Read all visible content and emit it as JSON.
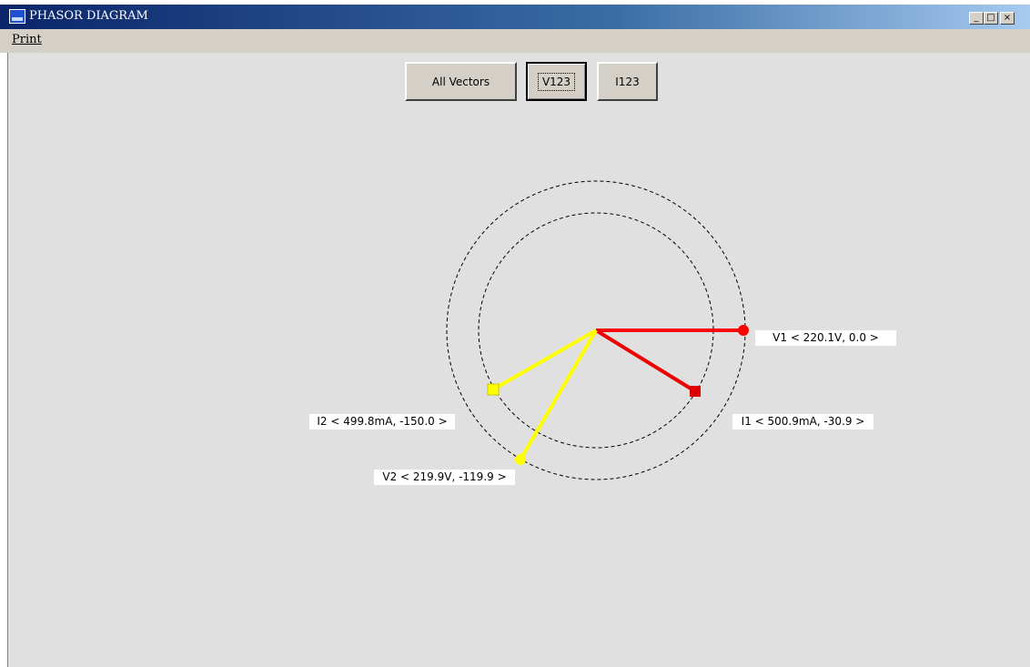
{
  "window": {
    "title": "PHASOR DIAGRAM"
  },
  "menu": [
    "Print"
  ],
  "buttons": [
    "All Vectors",
    "V123",
    "I123"
  ],
  "phasors": [
    {
      "label": "V1 < 220.1V, 0.0 >"
    },
    {
      "label": "I1 < 500.9mA, -30.9 >"
    },
    {
      "label": "I2 < 499.8mA, -150.0 >"
    },
    {
      "label": "V2 < 219.9V, -119.9 >"
    }
  ]
}
